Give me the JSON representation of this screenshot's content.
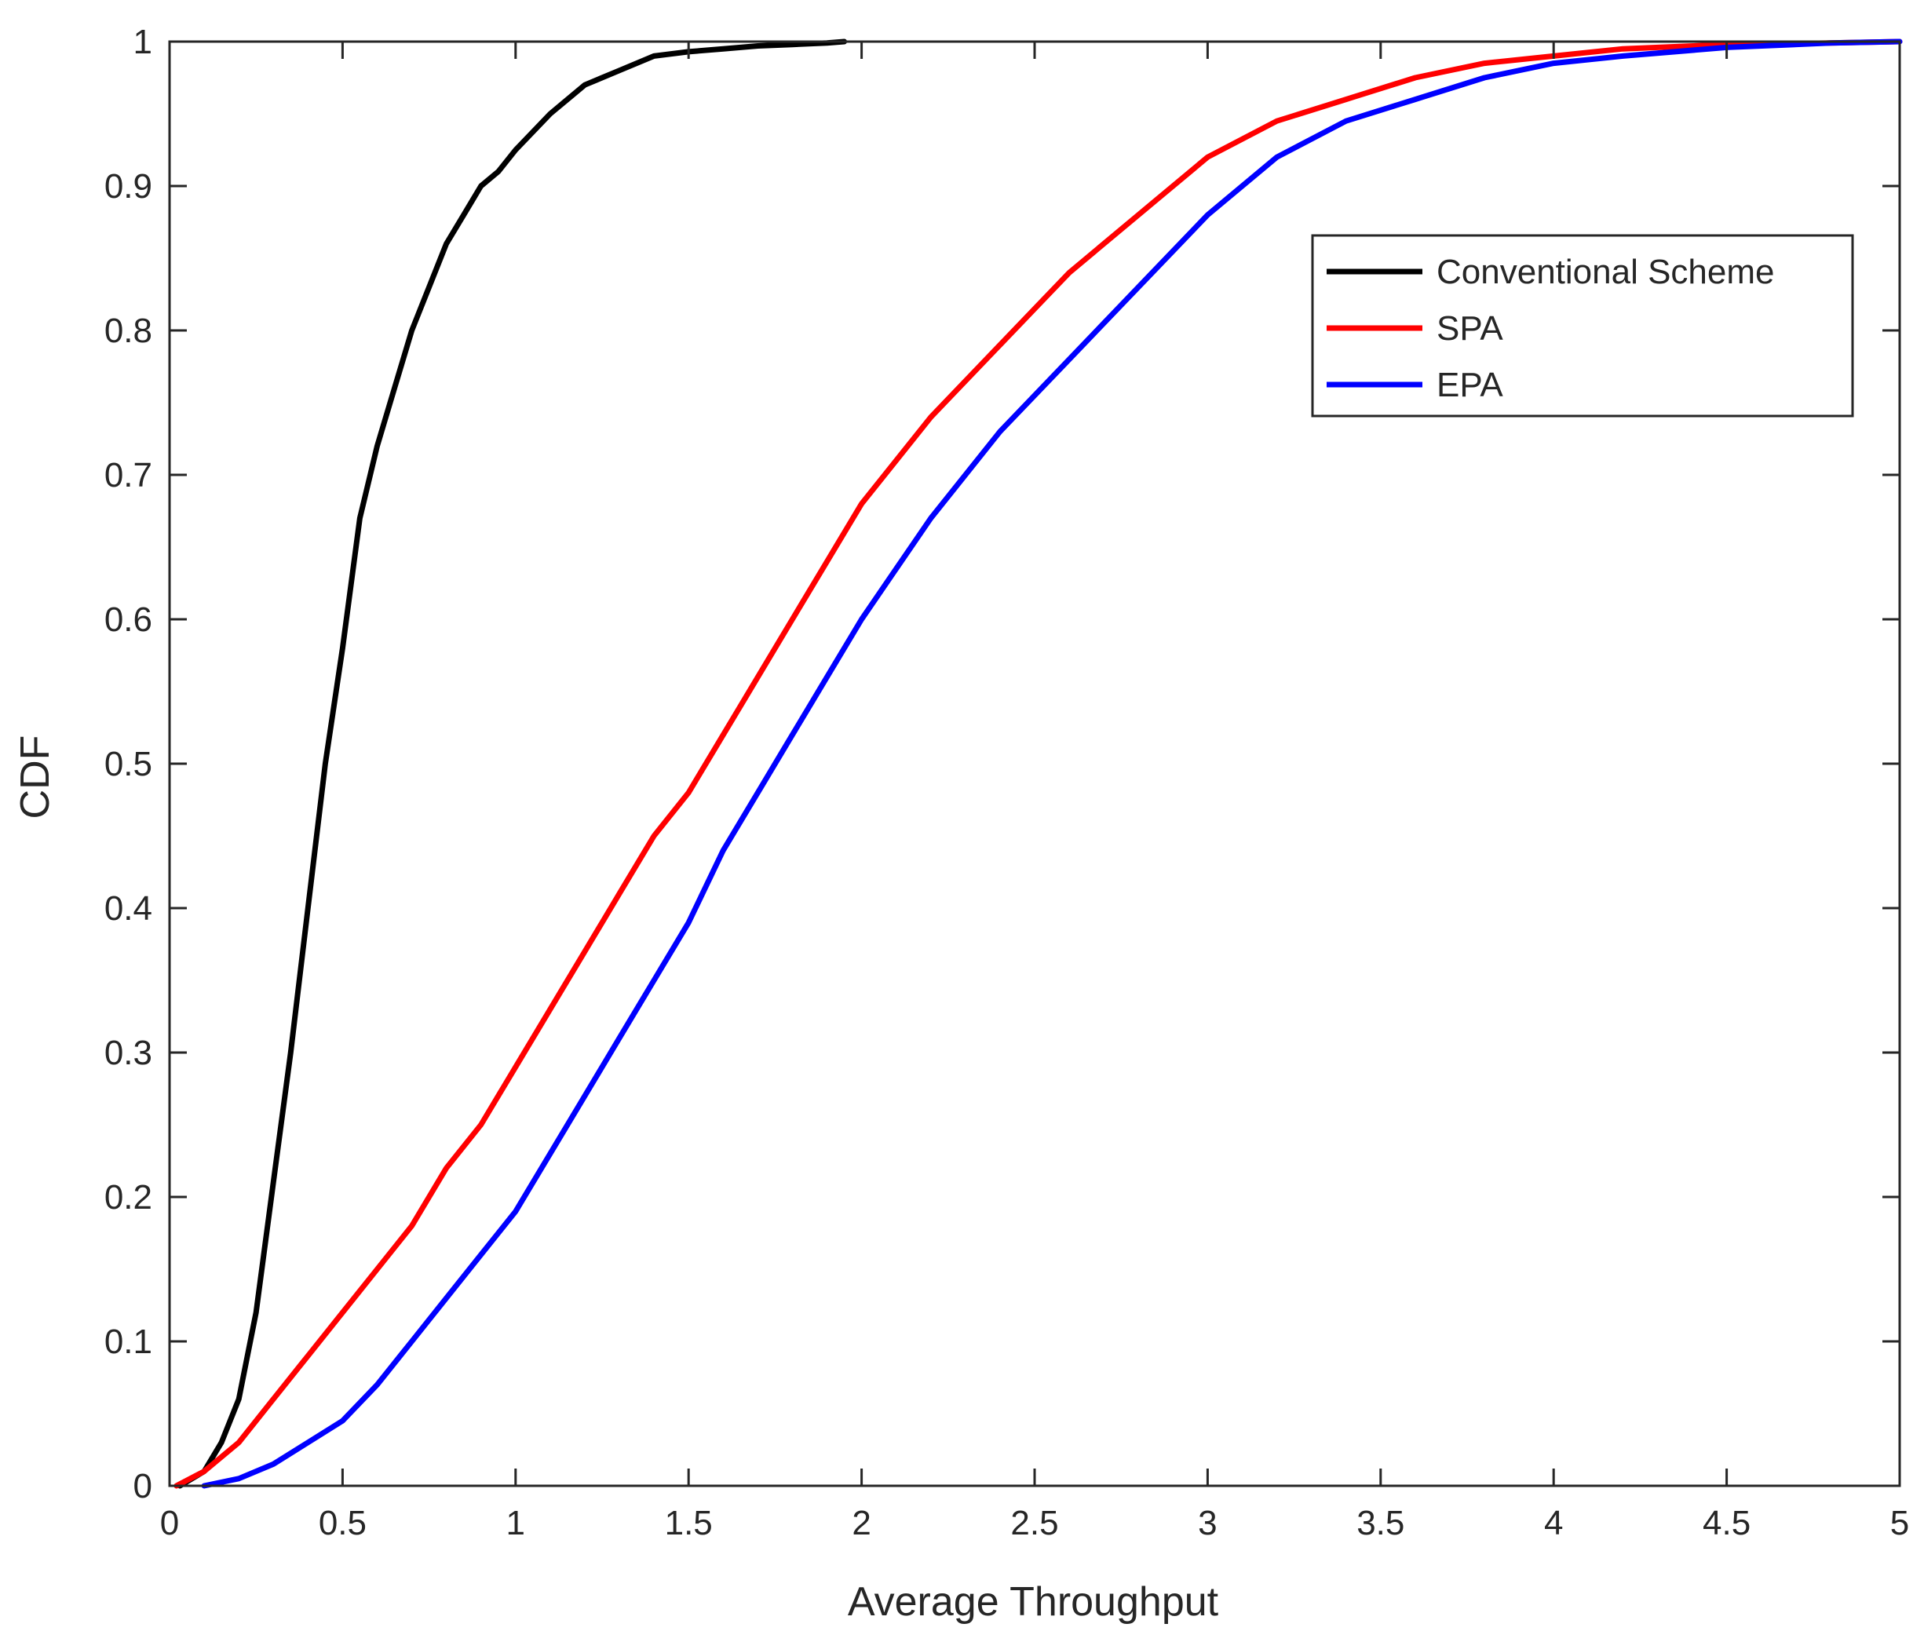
{
  "chart_data": {
    "type": "line",
    "title": "",
    "xlabel": "Average Throughput",
    "ylabel": "CDF",
    "xlim": [
      0,
      5
    ],
    "ylim": [
      0,
      1
    ],
    "xticks": [
      0,
      0.5,
      1,
      1.5,
      2,
      2.5,
      3,
      3.5,
      4,
      4.5,
      5
    ],
    "xtick_labels": [
      "0",
      "0.5",
      "1",
      "1.5",
      "2",
      "2.5",
      "3",
      "3.5",
      "4",
      "4.5",
      "5"
    ],
    "yticks": [
      0,
      0.1,
      0.2,
      0.3,
      0.4,
      0.5,
      0.6,
      0.7,
      0.8,
      0.9,
      1
    ],
    "ytick_labels": [
      "0",
      "0.1",
      "0.2",
      "0.3",
      "0.4",
      "0.5",
      "0.6",
      "0.7",
      "0.8",
      "0.9",
      "1"
    ],
    "grid": false,
    "box": true,
    "legend_position": "top-right",
    "series": [
      {
        "name": "Conventional Scheme",
        "color": "#000000",
        "x": [
          0.03,
          0.1,
          0.15,
          0.2,
          0.25,
          0.3,
          0.35,
          0.4,
          0.45,
          0.5,
          0.55,
          0.6,
          0.65,
          0.7,
          0.75,
          0.8,
          0.85,
          0.9,
          0.95,
          1.0,
          1.1,
          1.2,
          1.3,
          1.4,
          1.5,
          1.6,
          1.7,
          1.8,
          1.9,
          1.95
        ],
        "y": [
          0.0,
          0.01,
          0.03,
          0.06,
          0.12,
          0.21,
          0.3,
          0.4,
          0.5,
          0.58,
          0.67,
          0.72,
          0.76,
          0.8,
          0.83,
          0.86,
          0.88,
          0.9,
          0.91,
          0.925,
          0.95,
          0.97,
          0.98,
          0.99,
          0.993,
          0.995,
          0.997,
          0.998,
          0.999,
          1.0
        ]
      },
      {
        "name": "SPA",
        "color": "#ff0000",
        "x": [
          0.02,
          0.1,
          0.2,
          0.3,
          0.4,
          0.5,
          0.6,
          0.7,
          0.8,
          0.9,
          1.0,
          1.1,
          1.2,
          1.3,
          1.4,
          1.5,
          1.6,
          1.7,
          1.8,
          1.9,
          2.0,
          2.2,
          2.4,
          2.6,
          2.8,
          3.0,
          3.2,
          3.4,
          3.6,
          3.8,
          4.0,
          4.2,
          4.5,
          4.8,
          5.0
        ],
        "y": [
          0.0,
          0.01,
          0.03,
          0.06,
          0.09,
          0.12,
          0.15,
          0.18,
          0.22,
          0.25,
          0.29,
          0.33,
          0.37,
          0.41,
          0.45,
          0.48,
          0.52,
          0.56,
          0.6,
          0.64,
          0.68,
          0.74,
          0.79,
          0.84,
          0.88,
          0.92,
          0.945,
          0.96,
          0.975,
          0.985,
          0.99,
          0.995,
          0.998,
          0.999,
          1.0
        ]
      },
      {
        "name": "EPA",
        "color": "#0000ff",
        "x": [
          0.1,
          0.2,
          0.3,
          0.4,
          0.5,
          0.6,
          0.7,
          0.8,
          0.9,
          1.0,
          1.1,
          1.2,
          1.3,
          1.4,
          1.5,
          1.6,
          1.7,
          1.8,
          1.9,
          2.0,
          2.2,
          2.4,
          2.6,
          2.8,
          3.0,
          3.2,
          3.4,
          3.6,
          3.8,
          4.0,
          4.2,
          4.5,
          4.8,
          5.0
        ],
        "y": [
          0.0,
          0.005,
          0.015,
          0.03,
          0.045,
          0.07,
          0.1,
          0.13,
          0.16,
          0.19,
          0.23,
          0.27,
          0.31,
          0.35,
          0.39,
          0.44,
          0.48,
          0.52,
          0.56,
          0.6,
          0.67,
          0.73,
          0.78,
          0.83,
          0.88,
          0.92,
          0.945,
          0.96,
          0.975,
          0.985,
          0.99,
          0.996,
          0.999,
          1.0
        ]
      }
    ]
  }
}
